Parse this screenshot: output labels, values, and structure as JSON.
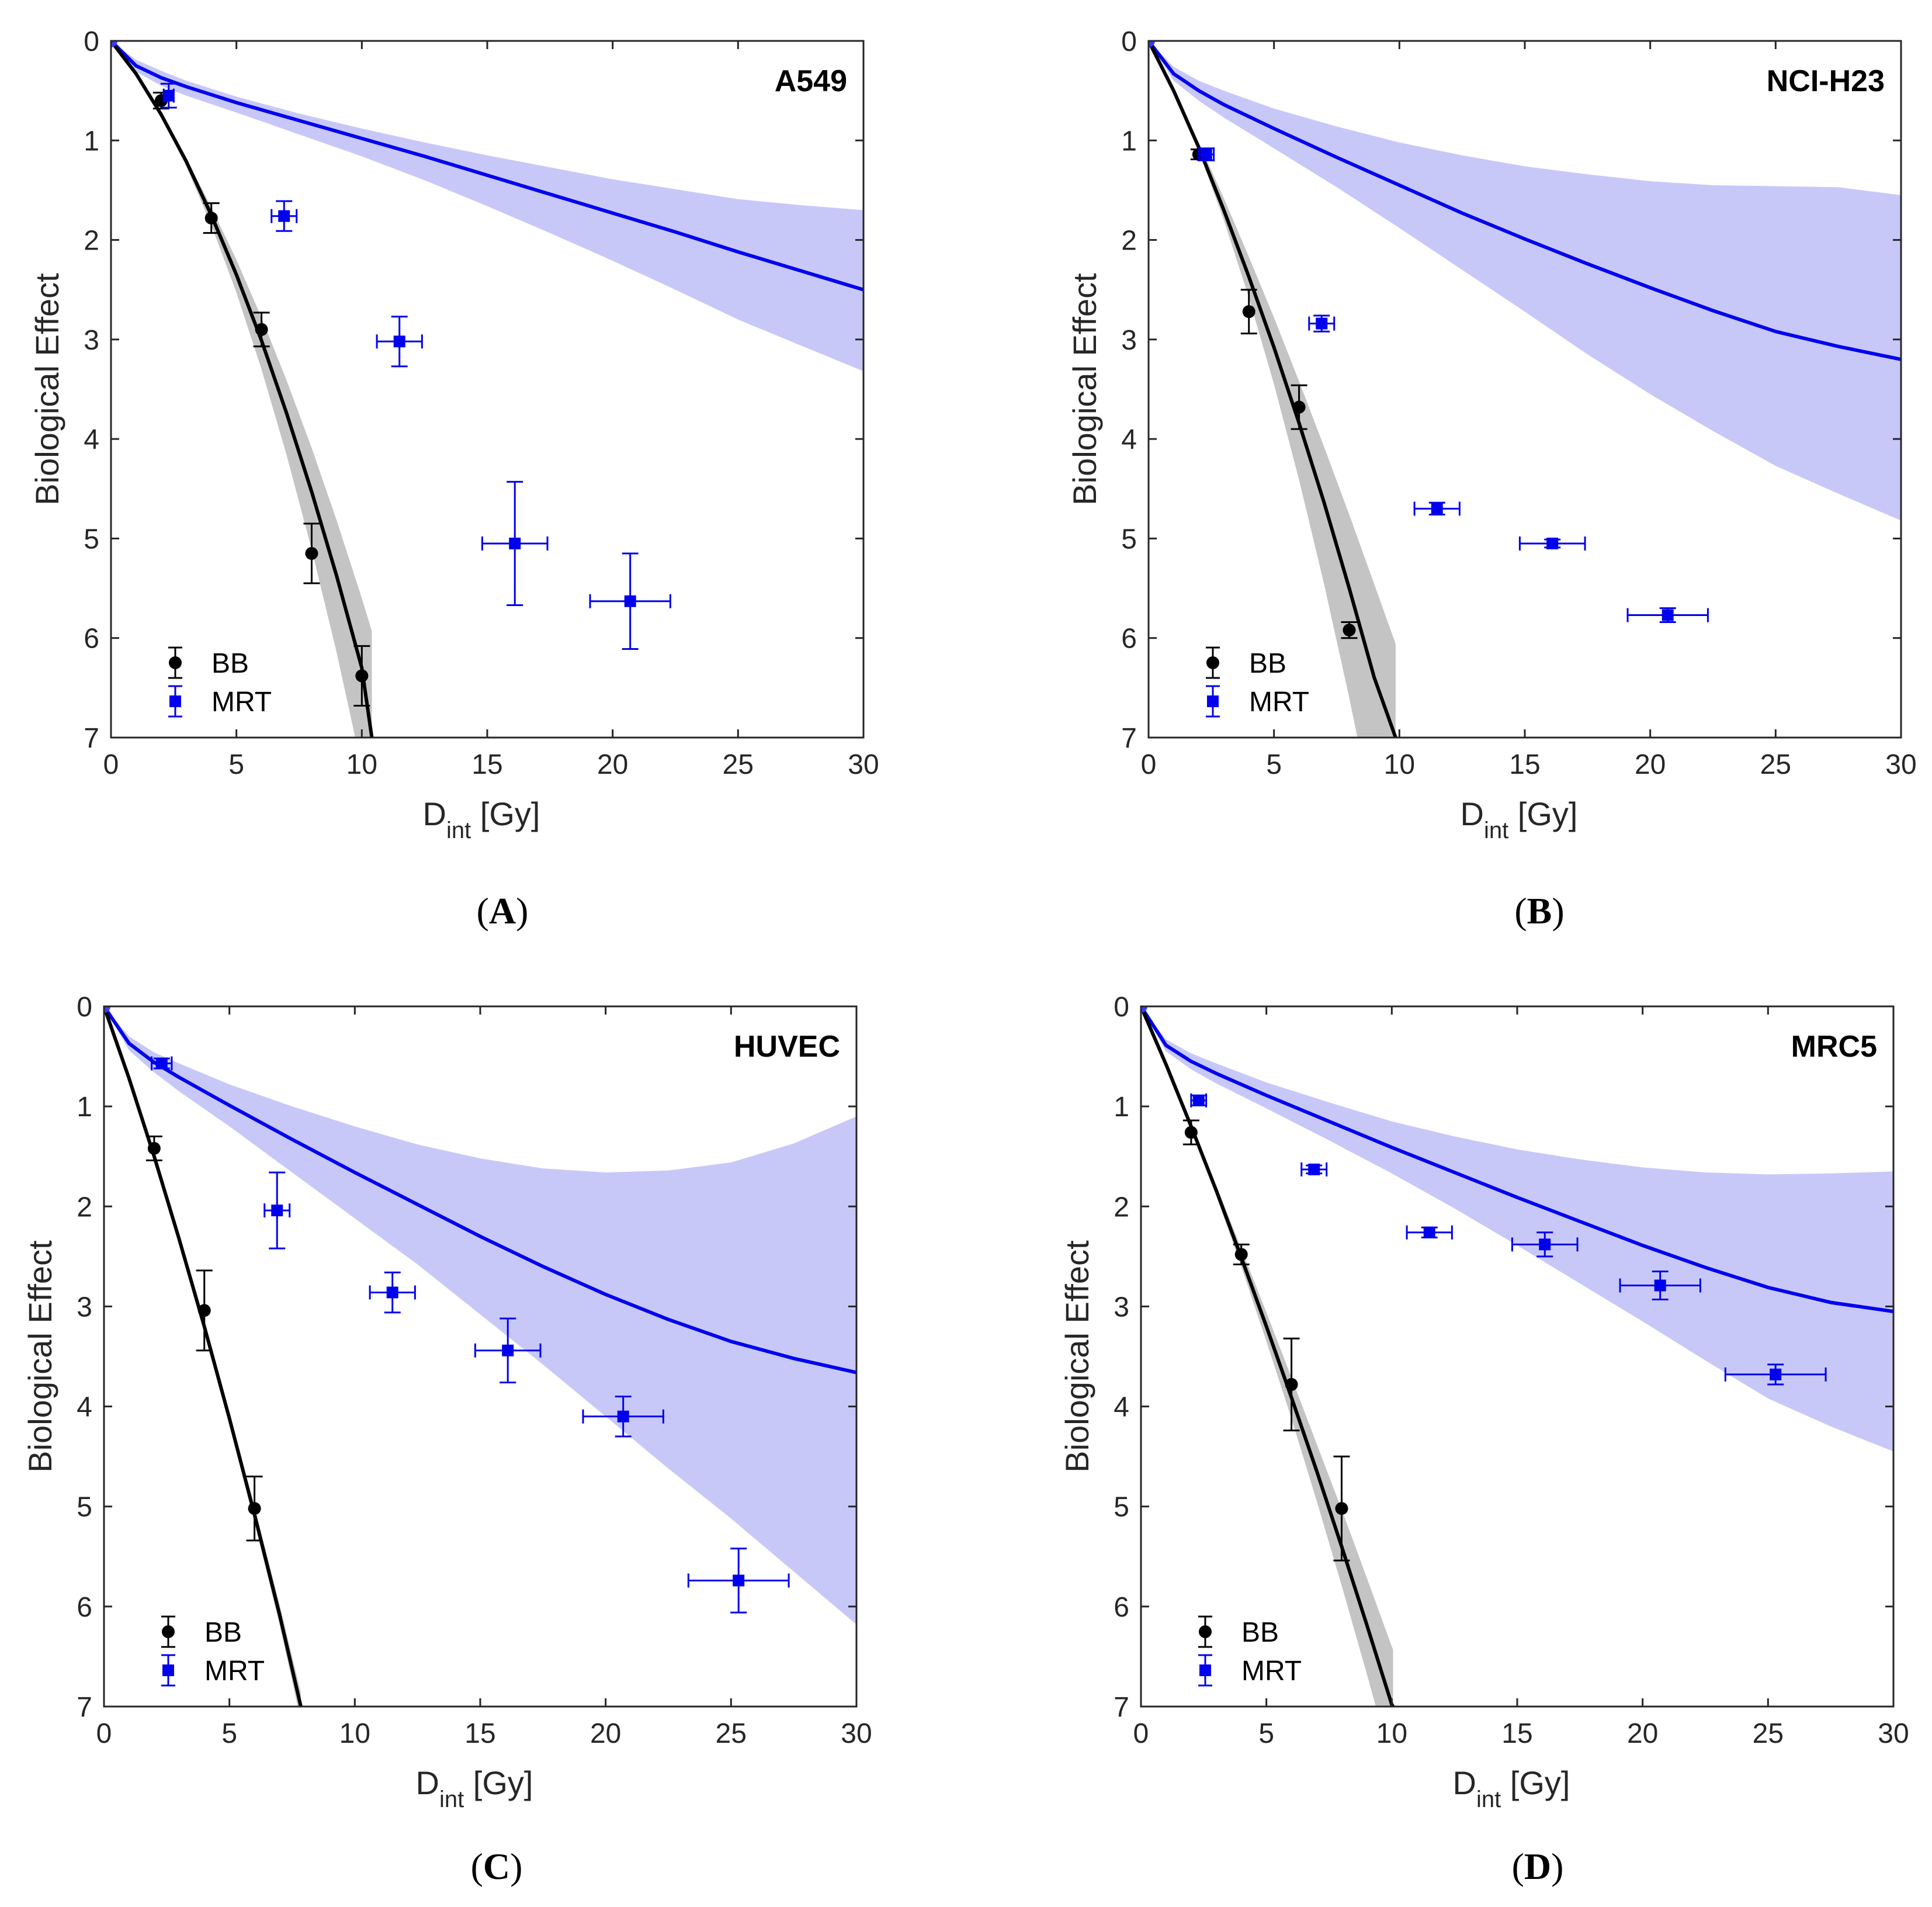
{
  "figure": {
    "xlabel_main": "D",
    "xlabel_sub": "int",
    "xlabel_unit": " [Gy]",
    "ylabel": "Biological Effect",
    "legend": [
      "BB",
      "MRT"
    ],
    "colors": {
      "bb": "#000000",
      "mrt": "#0000ee",
      "mrt_band": "#c8c8f8",
      "bb_band": "#c4c4c4"
    }
  },
  "chart_data": [
    {
      "type": "line",
      "panel_label": "A",
      "title": "A549",
      "xlabel": "D_int [Gy]",
      "ylabel": "Biological Effect",
      "xlim": [
        0,
        30
      ],
      "ylim": [
        0,
        7
      ],
      "y_reversed": true,
      "xticks": [
        0,
        5,
        10,
        15,
        20,
        25,
        30
      ],
      "yticks": [
        0,
        1,
        2,
        3,
        4,
        5,
        6,
        7
      ],
      "series": [
        {
          "name": "BB",
          "kind": "points",
          "x": [
            2,
            4,
            6,
            8,
            10
          ],
          "y": [
            0.6,
            1.78,
            2.9,
            5.15,
            6.38
          ],
          "yerr": [
            0.08,
            0.15,
            0.17,
            0.3,
            0.3
          ],
          "xerr": [
            0,
            0,
            0,
            0,
            0
          ]
        },
        {
          "name": "MRT",
          "kind": "points",
          "x": [
            2.3,
            6.9,
            11.5,
            16.1,
            20.7
          ],
          "y": [
            0.55,
            1.76,
            3.02,
            5.05,
            5.63
          ],
          "yerr": [
            0.12,
            0.15,
            0.25,
            0.62,
            0.48
          ],
          "xerr": [
            0.2,
            0.5,
            0.9,
            1.3,
            1.6
          ]
        },
        {
          "name": "BB fit",
          "kind": "curve",
          "x": [
            0,
            1,
            2,
            3,
            4,
            5,
            6,
            7,
            8,
            9,
            10,
            10.4
          ],
          "y": [
            0,
            0.33,
            0.74,
            1.21,
            1.75,
            2.35,
            3.01,
            3.74,
            4.53,
            5.38,
            6.3,
            7.0
          ],
          "band_lo": [
            0,
            0.33,
            0.73,
            1.18,
            1.67,
            2.2,
            2.78,
            3.41,
            4.09,
            4.82,
            5.6,
            5.93
          ],
          "band_hi": [
            0,
            0.34,
            0.76,
            1.26,
            1.85,
            2.53,
            3.3,
            4.16,
            5.11,
            6.15,
            7.3,
            7.78
          ]
        },
        {
          "name": "MRT fit",
          "kind": "curve",
          "x": [
            0,
            1,
            2,
            3,
            5,
            7.5,
            10,
            12.5,
            15,
            17.5,
            20,
            22.5,
            25,
            27.5,
            30
          ],
          "y": [
            0,
            0.25,
            0.37,
            0.46,
            0.62,
            0.8,
            0.98,
            1.16,
            1.35,
            1.54,
            1.73,
            1.92,
            2.12,
            2.31,
            2.5
          ],
          "band_lo": [
            0,
            0.19,
            0.3,
            0.4,
            0.56,
            0.73,
            0.88,
            1.02,
            1.15,
            1.27,
            1.39,
            1.49,
            1.59,
            1.65,
            1.7
          ],
          "band_hi": [
            0,
            0.31,
            0.45,
            0.55,
            0.72,
            0.94,
            1.16,
            1.4,
            1.66,
            1.93,
            2.21,
            2.5,
            2.8,
            3.06,
            3.32
          ]
        }
      ]
    },
    {
      "type": "line",
      "panel_label": "B",
      "title": "NCI-H23",
      "xlabel": "D_int [Gy]",
      "ylabel": "Biological Effect",
      "xlim": [
        0,
        30
      ],
      "ylim": [
        0,
        7
      ],
      "y_reversed": true,
      "xticks": [
        0,
        5,
        10,
        15,
        20,
        25,
        30
      ],
      "yticks": [
        0,
        1,
        2,
        3,
        4,
        5,
        6,
        7
      ],
      "series": [
        {
          "name": "BB",
          "kind": "points",
          "x": [
            2,
            4,
            6,
            8
          ],
          "y": [
            1.14,
            2.72,
            3.68,
            5.92
          ],
          "yerr": [
            0.05,
            0.22,
            0.22,
            0.08
          ],
          "xerr": [
            0,
            0,
            0,
            0
          ]
        },
        {
          "name": "MRT",
          "kind": "points",
          "x": [
            2.3,
            6.9,
            11.5,
            16.1,
            20.7
          ],
          "y": [
            1.14,
            2.84,
            4.7,
            5.05,
            5.77
          ],
          "yerr": [
            0.06,
            0.08,
            0.06,
            0.04,
            0.07
          ],
          "xerr": [
            0.3,
            0.5,
            0.9,
            1.3,
            1.6
          ]
        },
        {
          "name": "BB fit",
          "kind": "curve",
          "x": [
            0,
            1,
            2,
            3,
            4,
            5,
            6,
            7,
            8,
            9,
            9.85
          ],
          "y": [
            0,
            0.5,
            1.07,
            1.7,
            2.37,
            3.08,
            3.84,
            4.64,
            5.5,
            6.4,
            7.0
          ],
          "band_lo": [
            0,
            0.49,
            1.02,
            1.58,
            2.17,
            2.78,
            3.42,
            4.08,
            4.76,
            5.46,
            6.06
          ],
          "band_hi": [
            0,
            0.51,
            1.11,
            1.8,
            2.58,
            3.45,
            4.41,
            5.46,
            6.6,
            7.83,
            8.95
          ]
        },
        {
          "name": "MRT fit",
          "kind": "curve",
          "x": [
            0,
            1,
            2,
            3,
            5,
            7.5,
            10,
            12.5,
            15,
            17.5,
            20,
            22.5,
            25,
            27.5,
            30
          ],
          "y": [
            0,
            0.33,
            0.5,
            0.64,
            0.88,
            1.17,
            1.45,
            1.73,
            1.99,
            2.24,
            2.48,
            2.71,
            2.92,
            3.07,
            3.2
          ],
          "band_lo": [
            0,
            0.26,
            0.4,
            0.5,
            0.68,
            0.86,
            1.02,
            1.15,
            1.26,
            1.34,
            1.41,
            1.45,
            1.46,
            1.47,
            1.55
          ],
          "band_hi": [
            0,
            0.4,
            0.6,
            0.77,
            1.08,
            1.47,
            1.88,
            2.3,
            2.72,
            3.15,
            3.55,
            3.92,
            4.27,
            4.55,
            4.82
          ]
        }
      ]
    },
    {
      "type": "line",
      "panel_label": "C",
      "title": "HUVEC",
      "xlabel": "D_int [Gy]",
      "ylabel": "Biological Effect",
      "xlim": [
        0,
        30
      ],
      "ylim": [
        0,
        7
      ],
      "y_reversed": true,
      "xticks": [
        0,
        5,
        10,
        15,
        20,
        25,
        30
      ],
      "yticks": [
        0,
        1,
        2,
        3,
        4,
        5,
        6,
        7
      ],
      "series": [
        {
          "name": "BB",
          "kind": "points",
          "x": [
            2,
            4,
            6
          ],
          "y": [
            1.42,
            3.04,
            5.02
          ],
          "yerr": [
            0.12,
            0.4,
            0.32
          ],
          "xerr": [
            0,
            0,
            0
          ]
        },
        {
          "name": "MRT",
          "kind": "points",
          "x": [
            2.3,
            6.9,
            11.5,
            16.1,
            20.7,
            25.3
          ],
          "y": [
            0.57,
            2.04,
            2.86,
            3.44,
            4.1,
            5.74
          ],
          "yerr": [
            0.05,
            0.38,
            0.2,
            0.32,
            0.2,
            0.32
          ],
          "xerr": [
            0.4,
            0.5,
            0.9,
            1.3,
            1.6,
            2.0
          ]
        },
        {
          "name": "BB fit",
          "kind": "curve",
          "x": [
            0,
            1,
            2,
            3,
            4,
            5,
            6,
            7,
            7.85
          ],
          "y": [
            0,
            0.72,
            1.5,
            2.33,
            3.2,
            4.12,
            5.08,
            6.08,
            7.0
          ],
          "band_lo": [
            0,
            0.71,
            1.48,
            2.3,
            3.16,
            4.06,
            5.0,
            5.98,
            6.86
          ],
          "band_hi": [
            0,
            0.73,
            1.52,
            2.36,
            3.24,
            4.18,
            5.16,
            6.18,
            7.14
          ]
        },
        {
          "name": "MRT fit",
          "kind": "curve",
          "x": [
            0,
            1,
            2,
            3,
            5,
            7.5,
            10,
            12.5,
            15,
            17.5,
            20,
            22.5,
            25,
            27.5,
            30
          ],
          "y": [
            0,
            0.37,
            0.56,
            0.71,
            0.99,
            1.33,
            1.66,
            1.98,
            2.3,
            2.6,
            2.88,
            3.13,
            3.35,
            3.52,
            3.66
          ],
          "band_lo": [
            0,
            0.3,
            0.46,
            0.57,
            0.78,
            1.0,
            1.2,
            1.38,
            1.52,
            1.62,
            1.66,
            1.64,
            1.56,
            1.37,
            1.1
          ],
          "band_hi": [
            0,
            0.44,
            0.66,
            0.85,
            1.2,
            1.66,
            2.12,
            2.58,
            3.08,
            3.58,
            4.1,
            4.62,
            5.12,
            5.65,
            6.18
          ]
        }
      ]
    },
    {
      "type": "line",
      "panel_label": "D",
      "title": "MRC5",
      "xlabel": "D_int [Gy]",
      "ylabel": "Biological Effect",
      "xlim": [
        0,
        30
      ],
      "ylim": [
        0,
        7
      ],
      "y_reversed": true,
      "xticks": [
        0,
        5,
        10,
        15,
        20,
        25,
        30
      ],
      "yticks": [
        0,
        1,
        2,
        3,
        4,
        5,
        6,
        7
      ],
      "series": [
        {
          "name": "BB",
          "kind": "points",
          "x": [
            2,
            4,
            6,
            8
          ],
          "y": [
            1.26,
            2.48,
            3.78,
            5.02
          ],
          "yerr": [
            0.12,
            0.1,
            0.46,
            0.52
          ],
          "xerr": [
            0,
            0,
            0,
            0
          ]
        },
        {
          "name": "MRT",
          "kind": "points",
          "x": [
            2.3,
            6.9,
            11.5,
            16.1,
            20.7,
            25.3
          ],
          "y": [
            0.94,
            1.63,
            2.26,
            2.38,
            2.79,
            3.68
          ],
          "yerr": [
            0.05,
            0.04,
            0.05,
            0.12,
            0.14,
            0.1
          ],
          "xerr": [
            0.3,
            0.5,
            0.9,
            1.3,
            1.6,
            2.0
          ]
        },
        {
          "name": "BB fit",
          "kind": "curve",
          "x": [
            0,
            1,
            2,
            3,
            4,
            5,
            6,
            7,
            8,
            9,
            10,
            10.05
          ],
          "y": [
            0,
            0.58,
            1.2,
            1.84,
            2.51,
            3.2,
            3.91,
            4.64,
            5.4,
            6.18,
            6.98,
            7.0
          ],
          "band_lo": [
            0,
            0.58,
            1.18,
            1.79,
            2.42,
            3.06,
            3.71,
            4.37,
            5.03,
            5.71,
            6.4,
            6.43
          ],
          "band_hi": [
            0,
            0.59,
            1.22,
            1.89,
            2.6,
            3.35,
            4.12,
            4.94,
            5.79,
            6.67,
            7.58,
            7.62
          ]
        },
        {
          "name": "MRT fit",
          "kind": "curve",
          "x": [
            0,
            1,
            2,
            3,
            5,
            7.5,
            10,
            12.5,
            15,
            17.5,
            20,
            22.5,
            25,
            27.5,
            30
          ],
          "y": [
            0,
            0.39,
            0.55,
            0.67,
            0.89,
            1.15,
            1.41,
            1.66,
            1.91,
            2.15,
            2.39,
            2.61,
            2.81,
            2.96,
            3.05
          ],
          "band_lo": [
            0,
            0.33,
            0.47,
            0.57,
            0.76,
            0.96,
            1.15,
            1.3,
            1.43,
            1.53,
            1.61,
            1.66,
            1.68,
            1.67,
            1.65
          ],
          "band_hi": [
            0,
            0.45,
            0.63,
            0.77,
            1.02,
            1.34,
            1.67,
            2.02,
            2.39,
            2.77,
            3.15,
            3.54,
            3.92,
            4.2,
            4.45
          ]
        }
      ]
    }
  ]
}
